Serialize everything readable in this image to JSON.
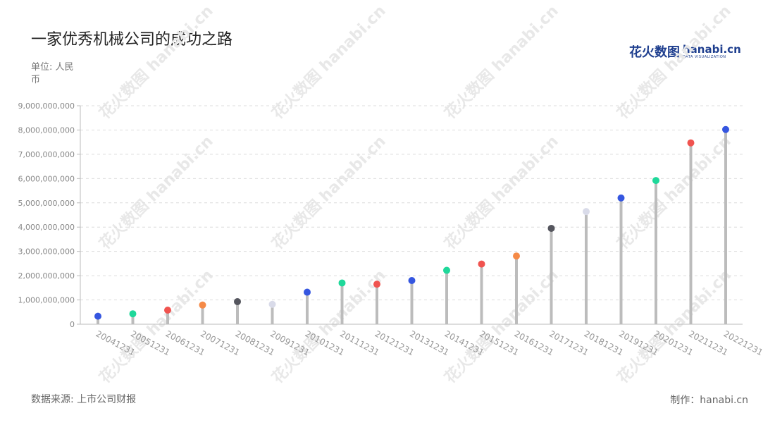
{
  "title": "一家优秀机械公司的成功之路",
  "unit_label": "单位: 人民币",
  "logo": {
    "cn": "花火数图",
    "en": "hanabi.cn",
    "sub": "DATA VISUALIZATION",
    "icon": "hanabi-logo-icon"
  },
  "source": "数据来源: 上市公司财报",
  "maker": "制作：hanabi.cn",
  "watermark": "花火数图 hanabi.cn",
  "chart_data": {
    "type": "lollipop",
    "title": "一家优秀机械公司的成功之路",
    "xlabel": "",
    "ylabel": "单位: 人民币",
    "categories": [
      "20041231",
      "20051231",
      "20061231",
      "20071231",
      "20081231",
      "20091231",
      "20101231",
      "20111231",
      "20121231",
      "20131231",
      "20141231",
      "20151231",
      "20161231",
      "20171231",
      "20181231",
      "20191231",
      "20201231",
      "20211231",
      "20221231"
    ],
    "values": [
      330000000,
      430000000,
      580000000,
      790000000,
      930000000,
      820000000,
      1320000000,
      1700000000,
      1650000000,
      1800000000,
      2220000000,
      2480000000,
      2810000000,
      3950000000,
      4640000000,
      5200000000,
      5920000000,
      7470000000,
      8020000000
    ],
    "colors": [
      "#3556e0",
      "#1fd89a",
      "#f0534f",
      "#f58a47",
      "#55565e",
      "#d9dbe9",
      "#3556e0",
      "#1fd89a",
      "#f0534f",
      "#3556e0",
      "#1fd89a",
      "#f0534f",
      "#f58a47",
      "#55565e",
      "#d9dbe9",
      "#3556e0",
      "#1fd89a",
      "#f0534f",
      "#3556e0"
    ],
    "stem_color": "#bcbcbc",
    "ylim": [
      0,
      9000000000
    ],
    "yticks": [
      0,
      1000000000,
      2000000000,
      3000000000,
      4000000000,
      5000000000,
      6000000000,
      7000000000,
      8000000000,
      9000000000
    ],
    "ytick_labels": [
      "0",
      "1,000,000,000",
      "2,000,000,000",
      "3,000,000,000",
      "4,000,000,000",
      "5,000,000,000",
      "6,000,000,000",
      "7,000,000,000",
      "8,000,000,000",
      "9,000,000,000"
    ],
    "grid": true,
    "legend": "none"
  }
}
